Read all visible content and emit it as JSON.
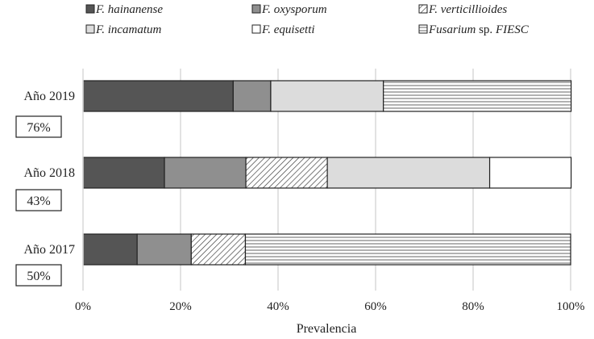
{
  "colors": {
    "hainanense": "#555555",
    "oxysporum": "#8f8f8f",
    "verticillioides": "hatch-diagonal",
    "incamatum": "#dcdcdc",
    "equisetti": "#ffffff",
    "fiesc": "hatch-horizontal",
    "grid": "#d9d9d9",
    "outline": "#222222"
  },
  "chart_data": {
    "type": "bar",
    "orientation": "horizontal",
    "stacked": true,
    "title": "",
    "xlabel": "Prevalencia",
    "ylabel": "",
    "xlim": [
      0,
      100
    ],
    "xticks": [
      0,
      20,
      40,
      60,
      80,
      100
    ],
    "xtick_labels": [
      "0%",
      "20%",
      "40%",
      "60%",
      "80%",
      "100%"
    ],
    "grid": "vertical",
    "legend_position": "top",
    "categories": [
      "Año 2019",
      "Año 2018",
      "Año 2017"
    ],
    "category_badges": [
      "76%",
      "43%",
      "50%"
    ],
    "series": [
      {
        "key": "hainanense",
        "name_italic": "F. hainanense",
        "name_roman": "",
        "values": [
          30.8,
          16.7,
          11.1
        ]
      },
      {
        "key": "oxysporum",
        "name_italic": "F. oxysporum",
        "name_roman": "",
        "values": [
          7.7,
          16.7,
          11.1
        ]
      },
      {
        "key": "verticillioides",
        "name_italic": "F. verticillioides",
        "name_roman": "",
        "values": [
          0,
          16.7,
          11.1
        ]
      },
      {
        "key": "incamatum",
        "name_italic": "F. incamatum",
        "name_roman": "",
        "values": [
          23.1,
          33.3,
          0
        ]
      },
      {
        "key": "equisetti",
        "name_italic": "F. equisetti",
        "name_roman": "",
        "values": [
          0,
          16.7,
          0
        ]
      },
      {
        "key": "fiesc",
        "name_italic": "Fusarium",
        "name_roman": " sp. ",
        "name_italic2": "FIESC",
        "values": [
          38.5,
          0,
          66.7
        ]
      }
    ]
  }
}
